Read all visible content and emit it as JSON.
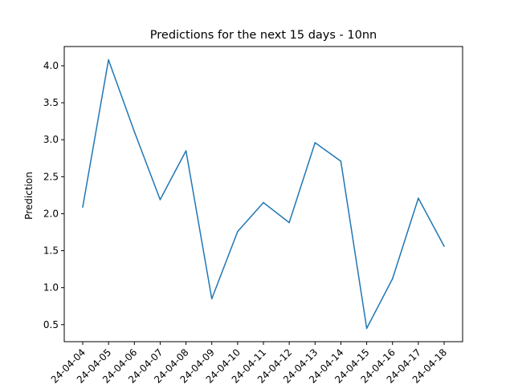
{
  "chart_data": {
    "type": "line",
    "title": "Predictions for the next 15 days - 10nn",
    "xlabel": "",
    "ylabel": "Prediction",
    "x_tick_labels": [
      "24-04-04",
      "24-04-05",
      "24-04-06",
      "24-04-07",
      "24-04-08",
      "24-04-09",
      "24-04-10",
      "24-04-11",
      "24-04-12",
      "24-04-13",
      "24-04-14",
      "24-04-15",
      "24-04-16",
      "24-04-17",
      "24-04-18"
    ],
    "y_tick_labels": [
      "0.5",
      "1.0",
      "1.5",
      "2.0",
      "2.5",
      "3.0",
      "3.5",
      "4.0"
    ],
    "y_ticks": [
      0.5,
      1.0,
      1.5,
      2.0,
      2.5,
      3.0,
      3.5,
      4.0
    ],
    "ylim": [
      0.27,
      4.26
    ],
    "series": [
      {
        "color": "#1f77b4",
        "values": [
          2.09,
          4.08,
          3.11,
          2.19,
          2.85,
          0.85,
          1.76,
          2.15,
          1.88,
          2.96,
          2.71,
          0.45,
          1.12,
          2.21,
          1.56
        ]
      }
    ],
    "grid": false,
    "legend": "none"
  }
}
